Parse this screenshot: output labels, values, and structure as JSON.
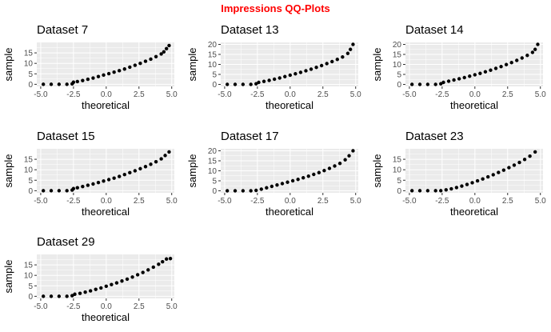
{
  "title": "Impressions QQ-Plots",
  "colors": {
    "title": "#ff0000",
    "panel_background": "#ebebeb",
    "grid": "#ffffff",
    "points": "#000000",
    "axis_text": "#4d4d4d"
  },
  "chart_data": [
    {
      "type": "scatter",
      "title": "Dataset 7",
      "xlabel": "theoretical",
      "ylabel": "sample",
      "xlim": [
        -5.3,
        5.2
      ],
      "ylim": [
        -1,
        20
      ],
      "xticks": [
        -5.0,
        -2.5,
        0.0,
        2.5,
        5.0
      ],
      "xtick_labels": [
        "-5.0",
        "-2.5",
        "0.0",
        "2.5",
        "5.0"
      ],
      "yticks": [
        0,
        5,
        10,
        15
      ],
      "ytick_labels": [
        "0",
        "5",
        "10",
        "15"
      ],
      "grid": true,
      "x": [
        -4.8,
        -4.2,
        -3.6,
        -3.0,
        -2.6,
        -2.5,
        -2.2,
        -1.8,
        -1.4,
        -1.0,
        -0.6,
        -0.2,
        0.2,
        0.6,
        1.0,
        1.4,
        1.8,
        2.2,
        2.6,
        3.0,
        3.4,
        3.8,
        4.2,
        4.4,
        4.6,
        4.8
      ],
      "y": [
        0,
        0,
        0,
        0,
        0.2,
        1,
        1.3,
        1.8,
        2.4,
        3.0,
        3.7,
        4.4,
        5.1,
        5.8,
        6.5,
        7.3,
        8.2,
        9.1,
        10.0,
        11.0,
        12.0,
        13.2,
        14.5,
        15.5,
        17,
        18.5
      ]
    },
    {
      "type": "scatter",
      "title": "Dataset 13",
      "xlabel": "theoretical",
      "ylabel": "sample",
      "xlim": [
        -5.3,
        5.2
      ],
      "ylim": [
        -1,
        21
      ],
      "xticks": [
        -5.0,
        -2.5,
        0.0,
        2.5,
        5.0
      ],
      "xtick_labels": [
        "-5.0",
        "-2.5",
        "0.0",
        "2.5",
        "5.0"
      ],
      "yticks": [
        0,
        5,
        10,
        15,
        20
      ],
      "ytick_labels": [
        "0",
        "5",
        "10",
        "15",
        "20"
      ],
      "grid": true,
      "x": [
        -4.8,
        -4.2,
        -3.6,
        -3.0,
        -2.6,
        -2.4,
        -2.0,
        -1.6,
        -1.2,
        -0.8,
        -0.4,
        0.0,
        0.4,
        0.8,
        1.2,
        1.6,
        2.0,
        2.4,
        2.8,
        3.2,
        3.6,
        4.0,
        4.4,
        4.6,
        4.8
      ],
      "y": [
        0,
        0,
        0,
        0,
        0.3,
        1,
        1.5,
        2.0,
        2.6,
        3.2,
        3.9,
        4.6,
        5.3,
        6.0,
        6.8,
        7.6,
        8.5,
        9.4,
        10.4,
        11.4,
        12.5,
        13.7,
        15.5,
        17.5,
        20
      ]
    },
    {
      "type": "scatter",
      "title": "Dataset 14",
      "xlabel": "theoretical",
      "ylabel": "sample",
      "xlim": [
        -5.3,
        5.2
      ],
      "ylim": [
        -1,
        21
      ],
      "xticks": [
        -5.0,
        -2.5,
        0.0,
        2.5,
        5.0
      ],
      "xtick_labels": [
        "-5.0",
        "-2.5",
        "0.0",
        "2.5",
        "5.0"
      ],
      "yticks": [
        0,
        5,
        10,
        15,
        20
      ],
      "ytick_labels": [
        "0",
        "5",
        "10",
        "15",
        "20"
      ],
      "grid": true,
      "x": [
        -4.8,
        -4.2,
        -3.6,
        -3.0,
        -2.6,
        -2.4,
        -2.0,
        -1.6,
        -1.2,
        -0.8,
        -0.4,
        0.0,
        0.4,
        0.8,
        1.2,
        1.6,
        2.0,
        2.4,
        2.8,
        3.2,
        3.6,
        4.0,
        4.4,
        4.6,
        4.8
      ],
      "y": [
        0,
        0,
        0,
        0,
        0.3,
        1,
        1.6,
        2.2,
        2.8,
        3.4,
        4.1,
        4.8,
        5.5,
        6.3,
        7.1,
        8.0,
        8.9,
        9.9,
        10.9,
        12.0,
        13.2,
        14.5,
        16.0,
        17.5,
        20
      ]
    },
    {
      "type": "scatter",
      "title": "Dataset 15",
      "xlabel": "theoretical",
      "ylabel": "sample",
      "xlim": [
        -5.3,
        5.2
      ],
      "ylim": [
        -1,
        20
      ],
      "xticks": [
        -5.0,
        -2.5,
        0.0,
        2.5,
        5.0
      ],
      "xtick_labels": [
        "-5.0",
        "-2.5",
        "0.0",
        "2.5",
        "5.0"
      ],
      "yticks": [
        0,
        5,
        10,
        15
      ],
      "ytick_labels": [
        "0",
        "5",
        "10",
        "15"
      ],
      "grid": true,
      "x": [
        -4.8,
        -4.2,
        -3.6,
        -3.0,
        -2.6,
        -2.5,
        -2.2,
        -1.8,
        -1.4,
        -1.0,
        -0.6,
        -0.2,
        0.2,
        0.6,
        1.0,
        1.4,
        1.8,
        2.2,
        2.6,
        3.0,
        3.4,
        3.8,
        4.2,
        4.5,
        4.8
      ],
      "y": [
        0,
        0,
        0,
        0,
        0.3,
        1,
        1.4,
        2.0,
        2.6,
        3.2,
        3.9,
        4.6,
        5.3,
        6.0,
        6.8,
        7.7,
        8.6,
        9.5,
        10.5,
        11.5,
        12.6,
        13.8,
        15.2,
        16.8,
        18.5
      ]
    },
    {
      "type": "scatter",
      "title": "Dataset 17",
      "xlabel": "theoretical",
      "ylabel": "sample",
      "xlim": [
        -5.3,
        5.2
      ],
      "ylim": [
        -1,
        21
      ],
      "xticks": [
        -5.0,
        -2.5,
        0.0,
        2.5,
        5.0
      ],
      "xtick_labels": [
        "-5.0",
        "-2.5",
        "0.0",
        "2.5",
        "5.0"
      ],
      "yticks": [
        0,
        5,
        10,
        15,
        20
      ],
      "ytick_labels": [
        "0",
        "5",
        "10",
        "15",
        "20"
      ],
      "grid": true,
      "x": [
        -4.8,
        -4.2,
        -3.6,
        -3.0,
        -2.6,
        -2.2,
        -1.8,
        -1.4,
        -1.0,
        -0.6,
        -0.2,
        0.2,
        0.6,
        1.0,
        1.4,
        1.8,
        2.2,
        2.6,
        3.0,
        3.4,
        3.8,
        4.2,
        4.5,
        4.8
      ],
      "y": [
        0,
        0,
        0,
        0,
        0.2,
        0.8,
        1.5,
        2.2,
        2.9,
        3.6,
        4.3,
        5.0,
        5.7,
        6.5,
        7.3,
        8.2,
        9.1,
        10.1,
        11.2,
        12.4,
        13.7,
        15.5,
        17.5,
        20
      ]
    },
    {
      "type": "scatter",
      "title": "Dataset 23",
      "xlabel": "theoretical",
      "ylabel": "sample",
      "xlim": [
        -5.3,
        5.2
      ],
      "ylim": [
        -1,
        20
      ],
      "xticks": [
        -5.0,
        -2.5,
        0.0,
        2.5,
        5.0
      ],
      "xtick_labels": [
        "-5.0",
        "-2.5",
        "0.0",
        "2.5",
        "5.0"
      ],
      "yticks": [
        0,
        5,
        10,
        15
      ],
      "ytick_labels": [
        "0",
        "5",
        "10",
        "15"
      ],
      "grid": true,
      "x": [
        -4.8,
        -4.2,
        -3.6,
        -3.0,
        -2.6,
        -2.2,
        -1.8,
        -1.4,
        -1.0,
        -0.6,
        -0.2,
        0.2,
        0.6,
        1.0,
        1.4,
        1.8,
        2.2,
        2.6,
        3.0,
        3.4,
        3.8,
        4.2,
        4.6
      ],
      "y": [
        0,
        0,
        0,
        0,
        0,
        0.4,
        0.9,
        1.5,
        2.2,
        3.0,
        3.8,
        4.7,
        5.6,
        6.6,
        7.6,
        8.7,
        9.8,
        11.0,
        12.2,
        13.5,
        14.9,
        16.5,
        18.5
      ]
    },
    {
      "type": "scatter",
      "title": "Dataset 29",
      "xlabel": "theoretical",
      "ylabel": "sample",
      "xlim": [
        -5.3,
        5.2
      ],
      "ylim": [
        -1,
        20
      ],
      "xticks": [
        -5.0,
        -2.5,
        0.0,
        2.5,
        5.0
      ],
      "xtick_labels": [
        "-5.0",
        "-2.5",
        "0.0",
        "2.5",
        "5.0"
      ],
      "yticks": [
        0,
        5,
        10,
        15
      ],
      "ytick_labels": [
        "0",
        "5",
        "10",
        "15"
      ],
      "grid": true,
      "x": [
        -4.8,
        -4.2,
        -3.6,
        -3.0,
        -2.6,
        -2.4,
        -2.0,
        -1.6,
        -1.2,
        -0.8,
        -0.4,
        0.0,
        0.4,
        0.8,
        1.2,
        1.6,
        2.0,
        2.4,
        2.8,
        3.2,
        3.6,
        4.0,
        4.3,
        4.6,
        4.9
      ],
      "y": [
        0,
        0,
        0,
        0,
        0.3,
        1,
        1.4,
        2.0,
        2.6,
        3.3,
        4.0,
        4.8,
        5.6,
        6.4,
        7.3,
        8.2,
        9.2,
        10.3,
        11.4,
        12.6,
        13.9,
        15.3,
        16.5,
        17.8,
        18
      ]
    }
  ]
}
